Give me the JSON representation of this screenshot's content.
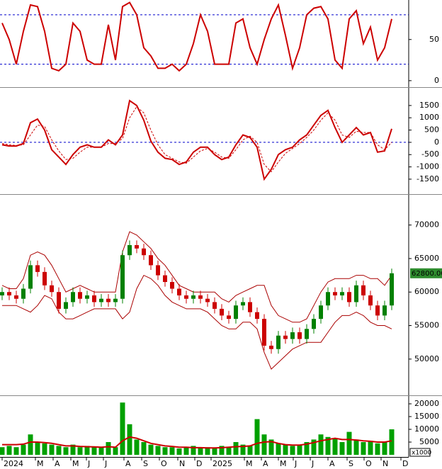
{
  "chart_data": [
    {
      "type": "line",
      "xlim": [
        -0.3,
        57.4
      ],
      "ylim": [
        -7,
        98
      ],
      "yticks": [
        50,
        0
      ],
      "hlines": [
        80,
        20
      ],
      "hline_color": "#0000cc",
      "x": [
        0,
        1,
        2,
        3,
        4,
        5,
        6,
        7,
        8,
        9,
        10,
        11,
        12,
        13,
        14,
        15,
        16,
        17,
        18,
        19,
        20,
        21,
        22,
        23,
        24,
        25,
        26,
        27,
        28,
        29,
        30,
        31,
        32,
        33,
        34,
        35,
        36,
        37,
        38,
        39,
        40,
        41,
        42,
        43,
        44,
        45,
        46,
        47,
        48,
        49,
        50,
        51,
        52,
        53,
        54,
        55
      ],
      "series": [
        {
          "color": "#cc0000",
          "style": "solid",
          "values": [
            70,
            50,
            20,
            60,
            92,
            90,
            60,
            15,
            12,
            20,
            70,
            60,
            25,
            20,
            20,
            68,
            25,
            90,
            95,
            80,
            40,
            30,
            15,
            15,
            20,
            12,
            20,
            45,
            80,
            60,
            20,
            20,
            20,
            70,
            75,
            40,
            20,
            50,
            75,
            92,
            55,
            15,
            40,
            80,
            88,
            90,
            75,
            25,
            15,
            75,
            85,
            45,
            65,
            25,
            40,
            75
          ]
        }
      ]
    },
    {
      "type": "line",
      "xlim": [
        -0.3,
        57.4
      ],
      "ylim": [
        -2080,
        2190
      ],
      "yticks": [
        1500,
        1000,
        500,
        0,
        -500,
        -1000,
        -1500
      ],
      "hlines": [
        0
      ],
      "hline_color": "#0000cc",
      "x": [
        0,
        1,
        2,
        3,
        4,
        5,
        6,
        7,
        8,
        9,
        10,
        11,
        12,
        13,
        14,
        15,
        16,
        17,
        18,
        19,
        20,
        21,
        22,
        23,
        24,
        25,
        26,
        27,
        28,
        29,
        30,
        31,
        32,
        33,
        34,
        35,
        36,
        37,
        38,
        39,
        40,
        41,
        42,
        43,
        44,
        45,
        46,
        47,
        48,
        49,
        50,
        51,
        52,
        53,
        54,
        55
      ],
      "series": [
        {
          "color": "#cc0000",
          "style": "solid",
          "values": [
            -100,
            -150,
            -150,
            -50,
            800,
            950,
            500,
            -300,
            -600,
            -900,
            -500,
            -200,
            -100,
            -200,
            -200,
            100,
            -100,
            300,
            1700,
            1500,
            900,
            50,
            -400,
            -650,
            -700,
            -900,
            -800,
            -400,
            -200,
            -200,
            -500,
            -700,
            -600,
            -100,
            300,
            200,
            -200,
            -1500,
            -1100,
            -500,
            -300,
            -200,
            100,
            300,
            700,
            1100,
            1300,
            600,
            0,
            300,
            600,
            300,
            400,
            -400,
            -350,
            550
          ]
        },
        {
          "color": "#cc0000",
          "style": "dashed",
          "values": [
            -50,
            -100,
            -130,
            -100,
            300,
            700,
            650,
            100,
            -350,
            -700,
            -650,
            -400,
            -200,
            -200,
            -200,
            -50,
            -50,
            150,
            1000,
            1450,
            1200,
            500,
            -100,
            -500,
            -650,
            -800,
            -850,
            -600,
            -350,
            -250,
            -400,
            -600,
            -650,
            -300,
            100,
            250,
            0,
            -900,
            -1200,
            -800,
            -450,
            -250,
            -50,
            200,
            500,
            900,
            1200,
            900,
            300,
            200,
            450,
            400,
            400,
            -100,
            -300,
            0
          ]
        }
      ]
    },
    {
      "type": "candlestick",
      "xlim": [
        -0.3,
        57.4
      ],
      "ylim": [
        44700,
        74400
      ],
      "yticks": [
        70000,
        65000,
        60000,
        55000,
        50000
      ],
      "up_color": "#008000",
      "down_color": "#cc0000",
      "band_color": "#aa0000",
      "tag_color": "#2e8b2e",
      "price_tag": "62800.00",
      "x": [
        0,
        1,
        2,
        3,
        4,
        5,
        6,
        7,
        8,
        9,
        10,
        11,
        12,
        13,
        14,
        15,
        16,
        17,
        18,
        19,
        20,
        21,
        22,
        23,
        24,
        25,
        26,
        27,
        28,
        29,
        30,
        31,
        32,
        33,
        34,
        35,
        36,
        37,
        38,
        39,
        40,
        41,
        42,
        43,
        44,
        45,
        46,
        47,
        48,
        49,
        50,
        51,
        52,
        53,
        54,
        55
      ],
      "open": [
        59500,
        60000,
        59500,
        59000,
        60500,
        64000,
        63000,
        61000,
        60000,
        57500,
        58500,
        60000,
        59000,
        59500,
        58500,
        59000,
        58500,
        59000,
        65500,
        67000,
        66500,
        65500,
        64000,
        62500,
        61500,
        60500,
        59500,
        59000,
        59500,
        59000,
        58500,
        57500,
        56500,
        56000,
        58000,
        58500,
        57000,
        56000,
        52000,
        51500,
        53500,
        53000,
        54000,
        53000,
        54500,
        56000,
        58000,
        60000,
        59500,
        60000,
        58500,
        61000,
        59500,
        58000,
        56500,
        58000
      ],
      "high": [
        60700,
        60700,
        60200,
        61200,
        64700,
        64700,
        63700,
        61700,
        60700,
        59200,
        60700,
        60700,
        60200,
        60200,
        59700,
        59700,
        59700,
        66200,
        67700,
        67700,
        67200,
        66200,
        64700,
        63200,
        62200,
        61200,
        60200,
        60200,
        60200,
        59700,
        59200,
        58200,
        57200,
        58700,
        59200,
        59200,
        57700,
        56700,
        52700,
        54200,
        54200,
        54700,
        54700,
        55200,
        56700,
        58700,
        60700,
        60700,
        60700,
        60700,
        61700,
        61700,
        60200,
        58700,
        58700,
        63500
      ],
      "low": [
        58800,
        58800,
        58300,
        58300,
        59800,
        62300,
        60300,
        59300,
        56800,
        56800,
        57800,
        58300,
        58300,
        57800,
        57800,
        57800,
        57800,
        58300,
        64800,
        65800,
        64800,
        63300,
        61800,
        60800,
        59800,
        58800,
        58300,
        58300,
        58300,
        57800,
        56800,
        55800,
        55300,
        55300,
        57300,
        56300,
        55300,
        51300,
        50800,
        50800,
        52300,
        52300,
        52300,
        52300,
        53800,
        55300,
        57300,
        58800,
        58800,
        57800,
        57800,
        58800,
        57300,
        55800,
        55800,
        57300
      ],
      "close": [
        60000,
        59500,
        59000,
        60500,
        64000,
        63000,
        61000,
        60000,
        57500,
        58500,
        60000,
        59000,
        59500,
        58500,
        59000,
        58500,
        59000,
        65500,
        67000,
        66500,
        65500,
        64000,
        62500,
        61500,
        60500,
        59500,
        59000,
        59500,
        59000,
        58500,
        57500,
        56500,
        56000,
        58000,
        58500,
        57000,
        56000,
        52000,
        51500,
        53500,
        53000,
        54000,
        53000,
        54500,
        56000,
        58000,
        60000,
        59500,
        60000,
        58500,
        61000,
        59500,
        58000,
        56500,
        58000,
        62800
      ],
      "upper_band": [
        61000,
        60500,
        60500,
        62000,
        65500,
        66000,
        65500,
        64000,
        62000,
        60000,
        60500,
        61000,
        60500,
        60000,
        60000,
        60000,
        60000,
        66000,
        69000,
        68500,
        67500,
        66500,
        65000,
        64000,
        62500,
        61000,
        60500,
        60000,
        60000,
        60000,
        60000,
        59000,
        58500,
        59500,
        60000,
        60500,
        61000,
        61000,
        58000,
        56500,
        56000,
        55500,
        55500,
        56000,
        58000,
        60000,
        61500,
        62000,
        62000,
        62000,
        62500,
        62500,
        62000,
        62000,
        61000,
        62500
      ],
      "lower_band": [
        58000,
        58000,
        58000,
        57500,
        57000,
        58000,
        59500,
        59000,
        57000,
        56000,
        56000,
        56500,
        57000,
        57500,
        57500,
        57500,
        57500,
        56000,
        57000,
        60500,
        62500,
        62000,
        61000,
        59500,
        58500,
        58000,
        57500,
        57500,
        57500,
        57000,
        56000,
        55000,
        54500,
        54500,
        55500,
        55500,
        54500,
        51000,
        48500,
        49500,
        50500,
        51500,
        52000,
        52500,
        52500,
        52500,
        54000,
        55500,
        56500,
        56500,
        57000,
        56500,
        55500,
        55000,
        55000,
        54500
      ]
    },
    {
      "type": "bar",
      "xlim": [
        -0.3,
        57.4
      ],
      "ylim": [
        -833,
        22778
      ],
      "yticks": [
        20000,
        15000,
        10000,
        5000
      ],
      "unit_label": "x1000",
      "color": "#00a000",
      "ma_color": "#cc0000",
      "x": [
        0,
        1,
        2,
        3,
        4,
        5,
        6,
        7,
        8,
        9,
        10,
        11,
        12,
        13,
        14,
        15,
        16,
        17,
        18,
        19,
        20,
        21,
        22,
        23,
        24,
        25,
        26,
        27,
        28,
        29,
        30,
        31,
        32,
        33,
        34,
        35,
        36,
        37,
        38,
        39,
        40,
        41,
        42,
        43,
        44,
        45,
        46,
        47,
        48,
        49,
        50,
        51,
        52,
        53,
        54,
        55
      ],
      "values": [
        3000,
        3500,
        3000,
        4000,
        8000,
        5000,
        4500,
        4000,
        3500,
        3000,
        4000,
        3000,
        3500,
        3000,
        3000,
        5000,
        3000,
        20500,
        12000,
        6000,
        5000,
        4000,
        3500,
        3000,
        3000,
        2500,
        3000,
        3500,
        3000,
        3000,
        2500,
        3500,
        3000,
        5000,
        4000,
        3500,
        14000,
        8000,
        6000,
        4500,
        4000,
        3500,
        4000,
        5000,
        6000,
        8000,
        7000,
        6500,
        5000,
        9000,
        6000,
        5000,
        5500,
        4500,
        5000,
        10000
      ],
      "ma": [
        4000,
        4000,
        4000,
        4200,
        5000,
        5000,
        4800,
        4500,
        4000,
        3500,
        3500,
        3300,
        3200,
        3100,
        3000,
        3200,
        3000,
        5500,
        7000,
        6500,
        5500,
        4500,
        4000,
        3500,
        3300,
        3000,
        3000,
        2800,
        2800,
        2700,
        2700,
        2800,
        3000,
        3200,
        3300,
        3500,
        4500,
        5000,
        5200,
        4500,
        4000,
        3800,
        3800,
        4200,
        4800,
        5500,
        6000,
        6500,
        6000,
        6000,
        5800,
        5500,
        5300,
        5000,
        5000,
        5500
      ],
      "xticks": [
        {
          "value": 0,
          "label": "2024"
        },
        {
          "value": 4.7,
          "label": "M"
        },
        {
          "value": 7.2,
          "label": "A"
        },
        {
          "value": 9.7,
          "label": "M"
        },
        {
          "value": 11.9,
          "label": "J"
        },
        {
          "value": 14.3,
          "label": "J"
        },
        {
          "value": 17.2,
          "label": "A"
        },
        {
          "value": 19.7,
          "label": "S"
        },
        {
          "value": 22.2,
          "label": "O"
        },
        {
          "value": 24.8,
          "label": "N"
        },
        {
          "value": 27.2,
          "label": "D"
        },
        {
          "value": 29.5,
          "label": "2025"
        },
        {
          "value": 34.2,
          "label": "M"
        },
        {
          "value": 36.6,
          "label": "A"
        },
        {
          "value": 39,
          "label": "M"
        },
        {
          "value": 41.1,
          "label": "J"
        },
        {
          "value": 43.5,
          "label": "J"
        },
        {
          "value": 46,
          "label": "A"
        },
        {
          "value": 48.7,
          "label": "S"
        },
        {
          "value": 51.1,
          "label": "O"
        },
        {
          "value": 53.5,
          "label": "N"
        },
        {
          "value": 56.3,
          "label": "D"
        }
      ]
    }
  ]
}
